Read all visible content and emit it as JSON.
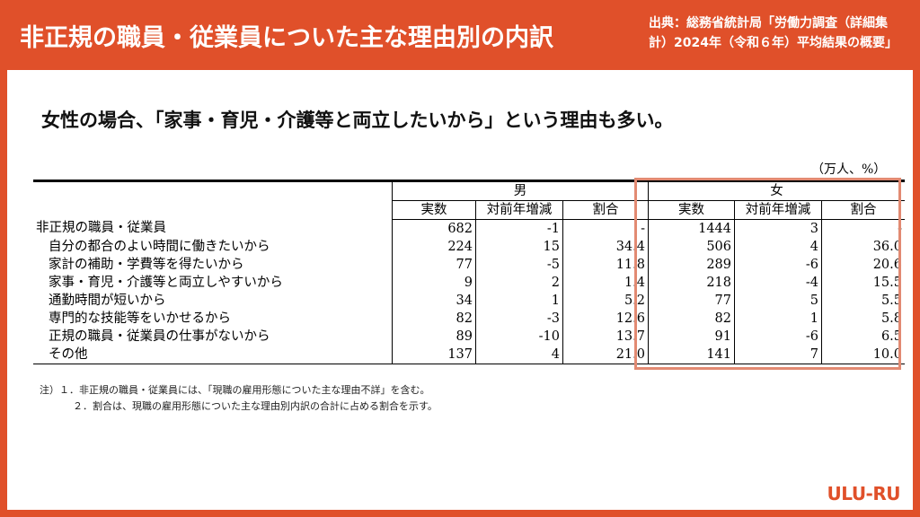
{
  "header": {
    "title": "非正規の職員・従業員についた主な理由別の内訳",
    "source": [
      "出典：総務省統計局「労働力調査（詳細集",
      "計）2024年（令和６年）平均結果の概要」"
    ]
  },
  "headline": "女性の場合、「家事・育児・介護等と両立したいから」という理由も多い。",
  "table": {
    "unit": "（万人、%）",
    "groups": [
      "男",
      "女"
    ],
    "columns": [
      "実数",
      "対前年増減",
      "割合",
      "実数",
      "対前年増減",
      "割合"
    ],
    "rows": [
      [
        "非正規の職員・従業員",
        "682",
        "-1",
        "-",
        "1444",
        "3",
        "-"
      ],
      [
        "自分の都合のよい時間に働きたいから",
        "224",
        "15",
        "34.4",
        "506",
        "4",
        "36.0"
      ],
      [
        "家計の補助・学費等を得たいから",
        "77",
        "-5",
        "11.8",
        "289",
        "-6",
        "20.6"
      ],
      [
        "家事・育児・介護等と両立しやすいから",
        "9",
        "2",
        "1.4",
        "218",
        "-4",
        "15.5"
      ],
      [
        "通勤時間が短いから",
        "34",
        "1",
        "5.2",
        "77",
        "5",
        "5.5"
      ],
      [
        "専門的な技能等をいかせるから",
        "82",
        "-3",
        "12.6",
        "82",
        "1",
        "5.8"
      ],
      [
        "正規の職員・従業員の仕事がないから",
        "89",
        "-10",
        "13.7",
        "91",
        "-6",
        "6.5"
      ],
      [
        "その他",
        "137",
        "4",
        "21.0",
        "141",
        "7",
        "10.0"
      ]
    ]
  },
  "notes": [
    "注）１．非正規の職員・従業員には、「現職の雇用形態についた主な理由不詳」を含む。",
    "２．割合は、現職の雇用形態についた主な理由別内訳の合計に占める割合を示す。"
  ],
  "logo": "ULU-RU"
}
